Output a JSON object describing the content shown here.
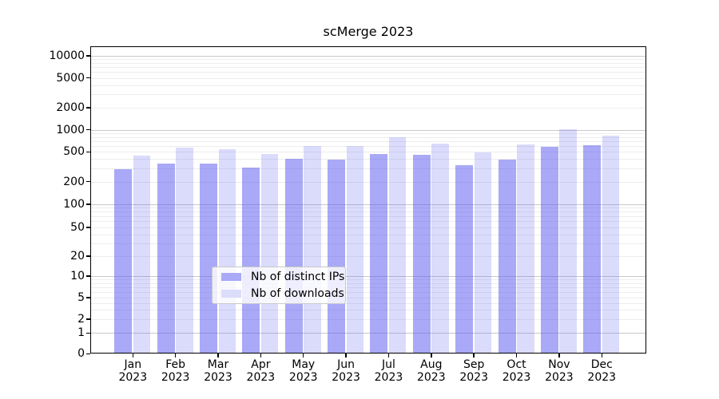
{
  "title": "scMerge 2023",
  "legend": {
    "items": [
      {
        "label": "Nb of distinct IPs",
        "key": "ips"
      },
      {
        "label": "Nb of downloads",
        "key": "downloads"
      }
    ]
  },
  "colors": {
    "ips": "rgba(90,90,240,0.52)",
    "downloads": "rgba(90,90,240,0.22)",
    "ips_solid": "#a9a9f7",
    "downloads_solid": "#dcdcfb",
    "grid_major": "#c9c9c9",
    "grid_minor": "#ededed",
    "axis": "#000000"
  },
  "y_axis": {
    "tick_values": [
      0,
      1,
      2,
      5,
      10,
      20,
      50,
      100,
      200,
      500,
      1000,
      2000,
      5000,
      10000
    ]
  },
  "x_axis": {
    "months": [
      "Jan",
      "Feb",
      "Mar",
      "Apr",
      "May",
      "Jun",
      "Jul",
      "Aug",
      "Sep",
      "Oct",
      "Nov",
      "Dec"
    ],
    "year": "2023"
  },
  "chart_data": {
    "type": "bar",
    "title": "scMerge 2023",
    "categories": [
      "Jan 2023",
      "Feb 2023",
      "Mar 2023",
      "Apr 2023",
      "May 2023",
      "Jun 2023",
      "Jul 2023",
      "Aug 2023",
      "Sep 2023",
      "Oct 2023",
      "Nov 2023",
      "Dec 2023"
    ],
    "series": [
      {
        "name": "Nb of distinct IPs",
        "values": [
          290,
          345,
          345,
          310,
          400,
          390,
          470,
          450,
          330,
          390,
          580,
          610
        ]
      },
      {
        "name": "Nb of downloads",
        "values": [
          440,
          570,
          535,
          470,
          590,
          590,
          780,
          640,
          490,
          620,
          1010,
          830
        ]
      }
    ],
    "yscale": "symlog",
    "y_ticks": [
      0,
      1,
      2,
      5,
      10,
      20,
      50,
      100,
      200,
      500,
      1000,
      2000,
      5000,
      10000
    ],
    "ylim": [
      0,
      13500
    ],
    "grid": true,
    "legend_position": "lower center"
  }
}
